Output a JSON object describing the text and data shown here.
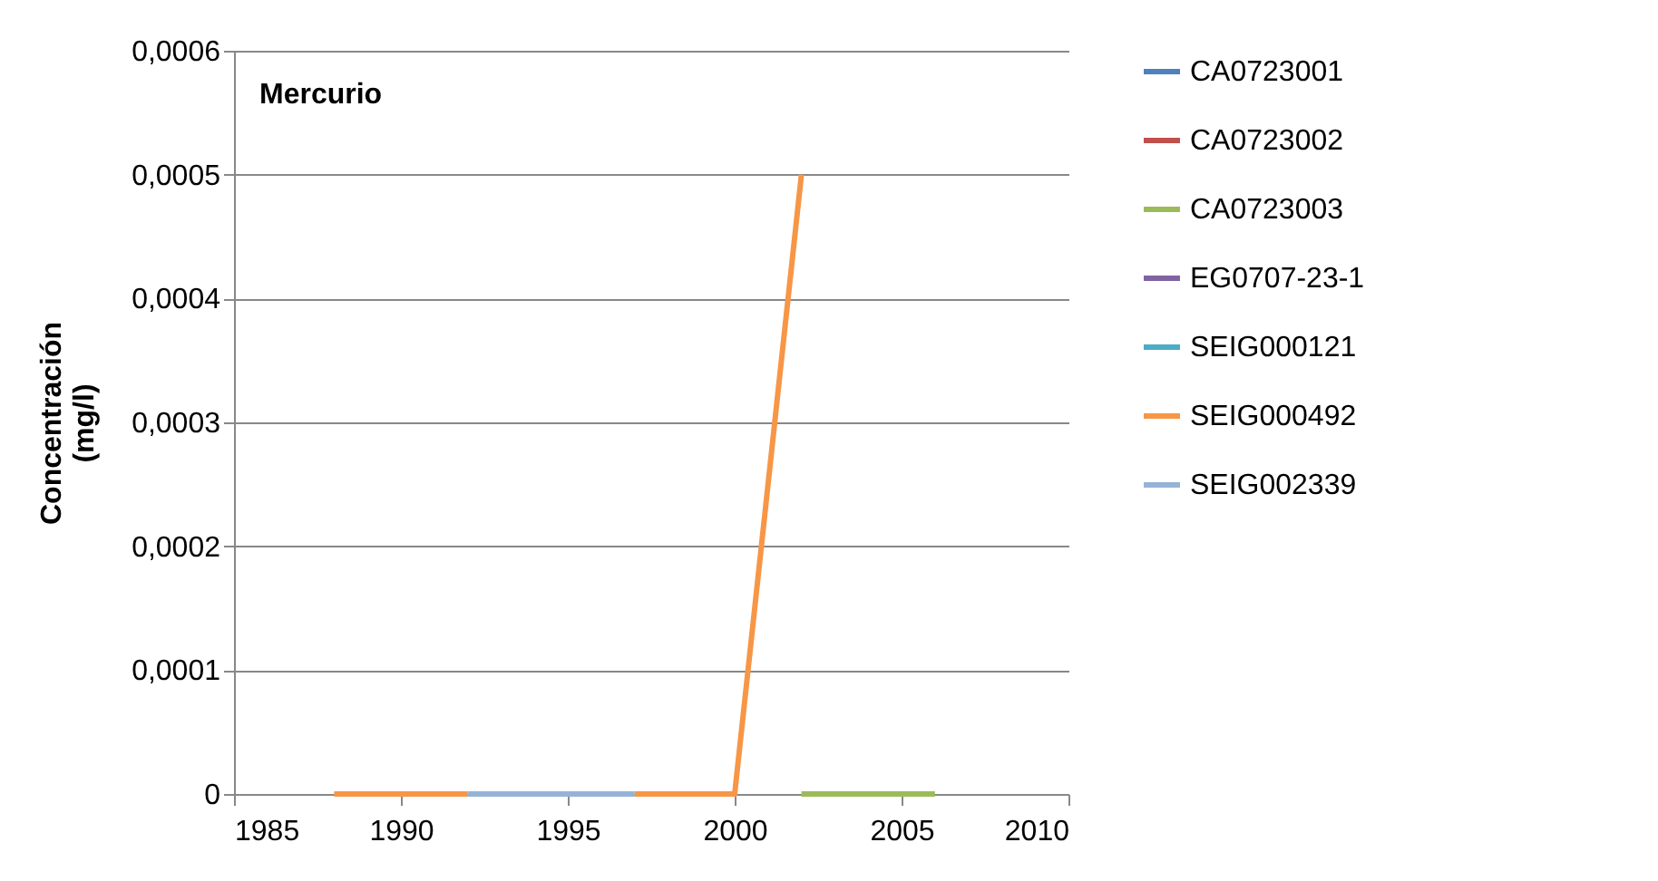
{
  "chart_data": {
    "type": "line",
    "title": "Mercurio",
    "ylabel": "Concentración (mg/l)",
    "xlim": [
      1985,
      2010
    ],
    "xticks": [
      1985,
      1990,
      1995,
      2000,
      2005,
      2010
    ],
    "ylim": [
      0,
      0.0006
    ],
    "yticks": [
      0,
      {
        "value": 0.0001,
        "label": "0,0001"
      },
      {
        "value": 0.0002,
        "label": "0,0002"
      },
      {
        "value": 0.0003,
        "label": "0,0003"
      },
      {
        "value": 0.0004,
        "label": "0,0004"
      },
      {
        "value": 0.0005,
        "label": "0,0005"
      },
      {
        "value": 0.0006,
        "label": "0,0006"
      }
    ],
    "grid": "y",
    "legend": "right",
    "marker": "none",
    "line_style": "solid",
    "series": [
      {
        "name": "CA0723001",
        "color": "#4f81bd"
      },
      {
        "name": "CA0723002",
        "color": "#c0504d"
      },
      {
        "name": "CA0723003",
        "color": "#9bbb59",
        "x": [
          2002,
          2006
        ],
        "values": [
          0,
          0
        ]
      },
      {
        "name": "EG0707-23-1",
        "color": "#8064a2"
      },
      {
        "name": "SEIG000121",
        "color": "#4bacc6"
      },
      {
        "name": "SEIG000492",
        "color": "#f79646",
        "x": [
          1988,
          1992,
          1994,
          1997,
          2000,
          2002
        ],
        "values": [
          0,
          0,
          null,
          0,
          0,
          0.0005
        ]
      },
      {
        "name": "SEIG002339",
        "color": "#95b3d7",
        "x": [
          1992,
          1997
        ],
        "values": [
          0,
          0
        ]
      }
    ]
  }
}
